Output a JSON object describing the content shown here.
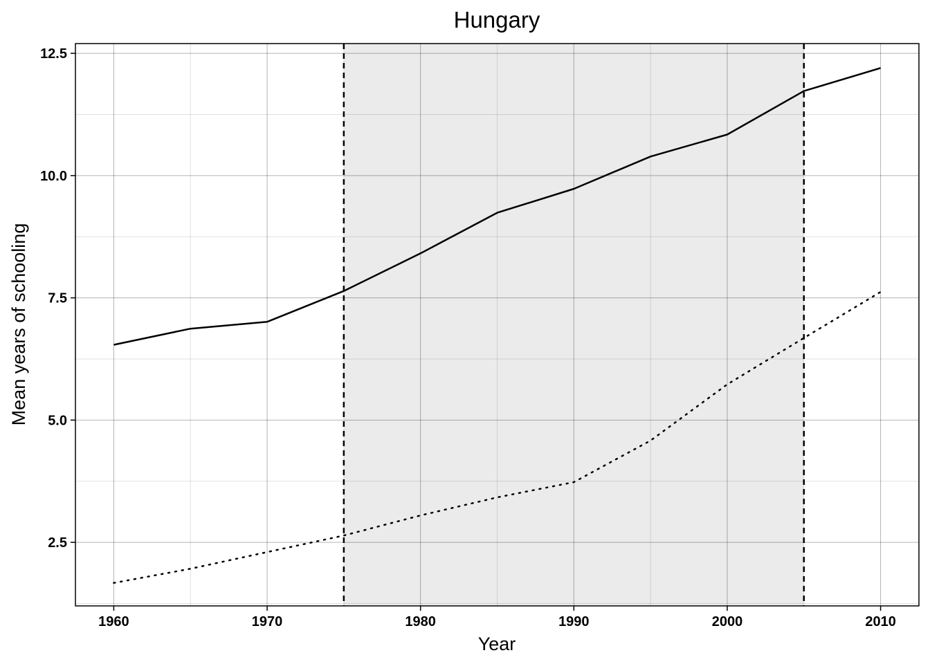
{
  "chart_data": {
    "type": "line",
    "title": "Hungary",
    "xlabel": "Year",
    "ylabel": "Mean years of schooling",
    "xlim": [
      1957.5,
      2012.5
    ],
    "ylim": [
      1.2,
      12.7
    ],
    "x_ticks": [
      1960,
      1970,
      1980,
      1990,
      2000,
      2010
    ],
    "x_tick_labels": [
      "1960",
      "1970",
      "1980",
      "1990",
      "2000",
      "2010"
    ],
    "x_minor_ticks": [
      1965,
      1975,
      1985,
      1995,
      2005
    ],
    "y_ticks": [
      2.5,
      5.0,
      7.5,
      10.0,
      12.5
    ],
    "y_tick_labels": [
      "2.5",
      "5.0",
      "7.5",
      "10.0",
      "12.5"
    ],
    "y_minor_ticks": [
      1.25,
      3.75,
      6.25,
      8.75,
      11.25
    ],
    "grid": true,
    "legend": "none",
    "shaded_period": {
      "from": 1975,
      "to": 2005,
      "color": "#ebebeb"
    },
    "vertical_markers": [
      1975,
      2005
    ],
    "series": [
      {
        "style": "solid",
        "color": "#000000",
        "x": [
          1960,
          1965,
          1970,
          1975,
          1980,
          1985,
          1990,
          1995,
          2000,
          2005,
          2010
        ],
        "values": [
          6.54,
          6.87,
          7.01,
          7.64,
          8.41,
          9.24,
          9.73,
          10.39,
          10.84,
          11.73,
          12.2
        ]
      },
      {
        "style": "dotted",
        "color": "#000000",
        "x": [
          1960,
          1965,
          1970,
          1975,
          1980,
          1985,
          1990,
          1995,
          2000,
          2005,
          2010
        ],
        "values": [
          1.67,
          1.96,
          2.3,
          2.64,
          3.05,
          3.42,
          3.73,
          4.58,
          5.73,
          6.68,
          7.62
        ]
      }
    ]
  }
}
